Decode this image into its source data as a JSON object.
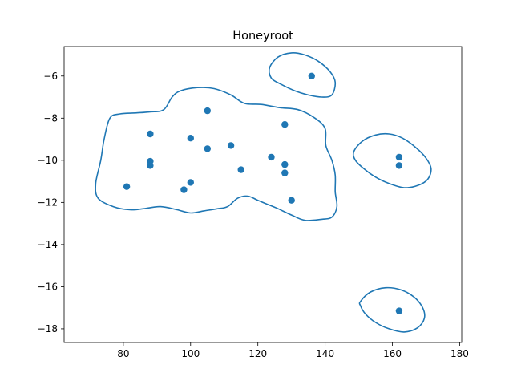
{
  "chart_data": {
    "type": "scatter",
    "title": "Honeyroot",
    "xlabel": "",
    "ylabel": "",
    "xlim": [
      62.4,
      180.6
    ],
    "ylim": [
      -18.65,
      -4.6
    ],
    "xticks": [
      80,
      100,
      120,
      140,
      160,
      180
    ],
    "yticks": [
      -6,
      -8,
      -10,
      -12,
      -14,
      -16,
      -18
    ],
    "grid": false,
    "color": "#1f77b4",
    "points": [
      {
        "x": 136,
        "y": -6.0
      },
      {
        "x": 105,
        "y": -7.65
      },
      {
        "x": 128,
        "y": -8.3
      },
      {
        "x": 88,
        "y": -8.75
      },
      {
        "x": 100,
        "y": -8.95
      },
      {
        "x": 112,
        "y": -9.3
      },
      {
        "x": 105,
        "y": -9.45
      },
      {
        "x": 124,
        "y": -9.85
      },
      {
        "x": 88,
        "y": -10.05
      },
      {
        "x": 88,
        "y": -10.25
      },
      {
        "x": 128,
        "y": -10.2
      },
      {
        "x": 115,
        "y": -10.45
      },
      {
        "x": 128,
        "y": -10.6
      },
      {
        "x": 100,
        "y": -11.05
      },
      {
        "x": 81,
        "y": -11.25
      },
      {
        "x": 98,
        "y": -11.4
      },
      {
        "x": 130,
        "y": -11.9
      },
      {
        "x": 162,
        "y": -9.85
      },
      {
        "x": 162,
        "y": -10.25
      },
      {
        "x": 162,
        "y": -17.15
      }
    ],
    "outlines": [
      [
        [
          71.8,
          -11.1
        ],
        [
          73.3,
          -10.0
        ],
        [
          74.3,
          -9.0
        ],
        [
          76.0,
          -8.0
        ],
        [
          79.0,
          -7.8
        ],
        [
          84.0,
          -7.75
        ],
        [
          88.0,
          -7.7
        ],
        [
          92.0,
          -7.6
        ],
        [
          94.5,
          -7.0
        ],
        [
          97.0,
          -6.7
        ],
        [
          102.0,
          -6.55
        ],
        [
          107.0,
          -6.6
        ],
        [
          112.0,
          -6.9
        ],
        [
          116.0,
          -7.3
        ],
        [
          121.0,
          -7.35
        ],
        [
          126.5,
          -7.5
        ],
        [
          132.0,
          -7.6
        ],
        [
          137.0,
          -8.0
        ],
        [
          140.0,
          -8.5
        ],
        [
          140.2,
          -9.3
        ],
        [
          142.0,
          -10.0
        ],
        [
          143.0,
          -10.7
        ],
        [
          143.0,
          -11.5
        ],
        [
          143.5,
          -12.2
        ],
        [
          142.0,
          -12.7
        ],
        [
          139.0,
          -12.8
        ],
        [
          134.0,
          -12.85
        ],
        [
          130.0,
          -12.6
        ],
        [
          126.0,
          -12.3
        ],
        [
          123.0,
          -12.1
        ],
        [
          120.0,
          -11.9
        ],
        [
          117.0,
          -11.7
        ],
        [
          114.0,
          -11.8
        ],
        [
          111.0,
          -12.2
        ],
        [
          108.0,
          -12.3
        ],
        [
          104.0,
          -12.4
        ],
        [
          100.0,
          -12.5
        ],
        [
          96.0,
          -12.35
        ],
        [
          91.0,
          -12.2
        ],
        [
          86.0,
          -12.3
        ],
        [
          82.0,
          -12.35
        ],
        [
          77.0,
          -12.2
        ],
        [
          72.5,
          -11.8
        ],
        [
          71.8,
          -11.1
        ]
      ],
      [
        [
          123.5,
          -5.6
        ],
        [
          126.0,
          -5.1
        ],
        [
          130.0,
          -4.9
        ],
        [
          134.0,
          -5.0
        ],
        [
          138.0,
          -5.3
        ],
        [
          141.5,
          -5.8
        ],
        [
          143.0,
          -6.3
        ],
        [
          142.0,
          -6.9
        ],
        [
          139.0,
          -7.0
        ],
        [
          135.0,
          -6.9
        ],
        [
          131.0,
          -6.7
        ],
        [
          127.0,
          -6.4
        ],
        [
          124.0,
          -6.1
        ],
        [
          123.5,
          -5.6
        ]
      ],
      [
        [
          148.5,
          -9.6
        ],
        [
          151.0,
          -9.1
        ],
        [
          155.0,
          -8.8
        ],
        [
          159.0,
          -8.75
        ],
        [
          163.0,
          -8.95
        ],
        [
          167.0,
          -9.4
        ],
        [
          170.0,
          -9.9
        ],
        [
          171.5,
          -10.4
        ],
        [
          170.5,
          -10.9
        ],
        [
          167.5,
          -11.2
        ],
        [
          163.5,
          -11.3
        ],
        [
          159.0,
          -11.1
        ],
        [
          155.0,
          -10.8
        ],
        [
          151.5,
          -10.4
        ],
        [
          149.0,
          -10.0
        ],
        [
          148.5,
          -9.6
        ]
      ],
      [
        [
          150.5,
          -16.7
        ],
        [
          153.5,
          -16.25
        ],
        [
          158.0,
          -16.05
        ],
        [
          162.5,
          -16.15
        ],
        [
          166.5,
          -16.5
        ],
        [
          169.0,
          -17.0
        ],
        [
          169.5,
          -17.5
        ],
        [
          167.5,
          -17.95
        ],
        [
          163.5,
          -18.15
        ],
        [
          159.0,
          -18.0
        ],
        [
          155.0,
          -17.7
        ],
        [
          152.0,
          -17.3
        ],
        [
          150.5,
          -16.9
        ],
        [
          150.5,
          -16.7
        ]
      ]
    ]
  }
}
